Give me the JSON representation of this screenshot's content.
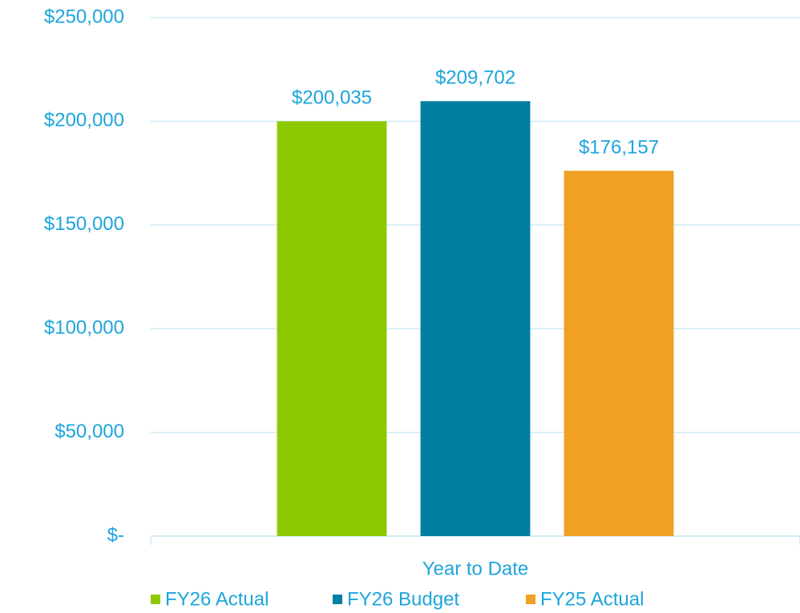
{
  "chart_data": {
    "type": "bar",
    "categories": [
      "Year to Date"
    ],
    "series": [
      {
        "name": "FY26 Actual",
        "color": "#8dc900",
        "values": [
          200035
        ],
        "value_labels": [
          "$200,035"
        ]
      },
      {
        "name": "FY26 Budget",
        "color": "#007fa3",
        "values": [
          209702
        ],
        "value_labels": [
          "$209,702"
        ]
      },
      {
        "name": "FY25 Actual",
        "color": "#f0a023",
        "values": [
          176157
        ],
        "value_labels": [
          "$176,157"
        ]
      }
    ],
    "ylim": [
      0,
      250000
    ],
    "yticks": [
      {
        "value": 0,
        "label": "$-"
      },
      {
        "value": 50000,
        "label": "$50,000"
      },
      {
        "value": 100000,
        "label": "$100,000"
      },
      {
        "value": 150000,
        "label": "$150,000"
      },
      {
        "value": 200000,
        "label": "$200,000"
      },
      {
        "value": 250000,
        "label": "$250,000"
      }
    ],
    "grid": true,
    "legend": "bottom"
  }
}
